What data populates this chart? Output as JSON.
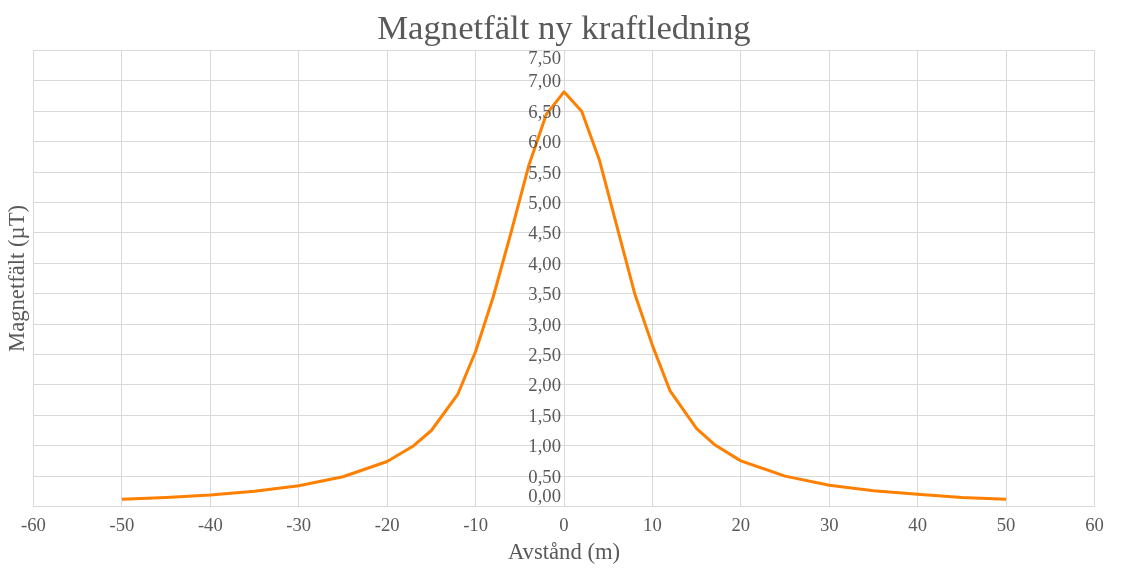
{
  "chart_data": {
    "type": "line",
    "title": "Magnetfält ny kraftledning",
    "xlabel": "Avstånd (m)",
    "ylabel": "Magnetfält (µT)",
    "x": [
      -50,
      -45,
      -40,
      -35,
      -30,
      -25,
      -20,
      -17,
      -15,
      -12,
      -10,
      -8,
      -6,
      -4,
      -2,
      0,
      2,
      4,
      6,
      8,
      10,
      12,
      15,
      17,
      20,
      25,
      30,
      35,
      40,
      45,
      50
    ],
    "series": [
      {
        "color": "#ff8000",
        "values": [
          0.12,
          0.15,
          0.19,
          0.25,
          0.34,
          0.49,
          0.74,
          1.0,
          1.25,
          1.85,
          2.55,
          3.45,
          4.5,
          5.6,
          6.45,
          6.82,
          6.5,
          5.7,
          4.6,
          3.5,
          2.65,
          1.9,
          1.28,
          1.02,
          0.75,
          0.5,
          0.35,
          0.26,
          0.2,
          0.15,
          0.12
        ]
      }
    ],
    "xlim": [
      -60,
      60
    ],
    "xticks": [
      -60,
      -50,
      -40,
      -30,
      -20,
      -10,
      0,
      10,
      20,
      30,
      40,
      50,
      60
    ],
    "ylim": [
      0,
      7.5
    ],
    "yticks": [
      {
        "value": 0,
        "label": "0,00"
      },
      {
        "value": 0.5,
        "label": "0,50"
      },
      {
        "value": 1,
        "label": "1,00"
      },
      {
        "value": 1.5,
        "label": "1,50"
      },
      {
        "value": 2,
        "label": "2,00"
      },
      {
        "value": 2.5,
        "label": "2,50"
      },
      {
        "value": 3,
        "label": "3,00"
      },
      {
        "value": 3.5,
        "label": "3,50"
      },
      {
        "value": 4,
        "label": "4,00"
      },
      {
        "value": 4.5,
        "label": "4,50"
      },
      {
        "value": 5,
        "label": "5,00"
      },
      {
        "value": 5.5,
        "label": "5,50"
      },
      {
        "value": 6,
        "label": "6,00"
      },
      {
        "value": 6.5,
        "label": "6,50"
      },
      {
        "value": 7,
        "label": "7,00"
      },
      {
        "value": 7.5,
        "label": "7,50"
      }
    ],
    "grid": true,
    "marker": "none",
    "line_style": "solid"
  }
}
